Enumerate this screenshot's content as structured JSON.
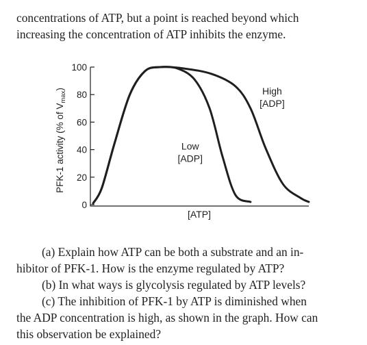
{
  "intro": {
    "lines": [
      "concentrations of ATP, but a point is reached beyond which",
      "increasing the concentration of ATP inhibits the enzyme."
    ]
  },
  "chart_data": {
    "type": "line",
    "xlabel": "[ATP]",
    "ylabel_main": "PFK-1 activity (% of V",
    "ylabel_sub": "max",
    "ylabel_close": ")",
    "ylim": [
      0,
      100
    ],
    "yticks": [
      "0",
      "20",
      "40",
      "60",
      "80",
      "100"
    ],
    "ytick_values": [
      0,
      20,
      40,
      60,
      80,
      100
    ],
    "xlim": [
      0,
      10
    ],
    "grid": false,
    "series": [
      {
        "name": "Low [ADP]",
        "label_lines": [
          "Low",
          "[ADP]"
        ],
        "x": [
          0,
          0.4,
          1.0,
          1.7,
          2.4,
          3.1,
          3.9,
          4.7,
          5.4,
          6.0,
          6.6,
          7.3
        ],
        "y": [
          1,
          12,
          45,
          80,
          97,
          100,
          99,
          91,
          70,
          35,
          7,
          2
        ]
      },
      {
        "name": "High [ADP]",
        "label_lines": [
          "High",
          "[ADP]"
        ],
        "x": [
          0,
          0.4,
          1.0,
          1.7,
          2.4,
          3.1,
          4.2,
          5.5,
          6.6,
          7.3,
          8.0,
          8.8,
          9.6,
          10.0
        ],
        "y": [
          1,
          12,
          45,
          80,
          97,
          100,
          99,
          95,
          86,
          70,
          41,
          15,
          5,
          2
        ]
      }
    ]
  },
  "questions": {
    "a_lines": [
      "(a) Explain how ATP can be both a substrate and an in-",
      "hibitor of PFK-1. How is the enzyme regulated by ATP?"
    ],
    "b_lines": [
      "(b) In what ways is glycolysis regulated by ATP levels?"
    ],
    "c_lines": [
      "(c) The inhibition of PFK-1 by ATP is diminished when",
      "the ADP concentration is high, as shown in the graph. How can",
      "this observation be explained?"
    ]
  },
  "colors": {
    "ink": "#1f1f1f",
    "background": "#ffffff"
  }
}
